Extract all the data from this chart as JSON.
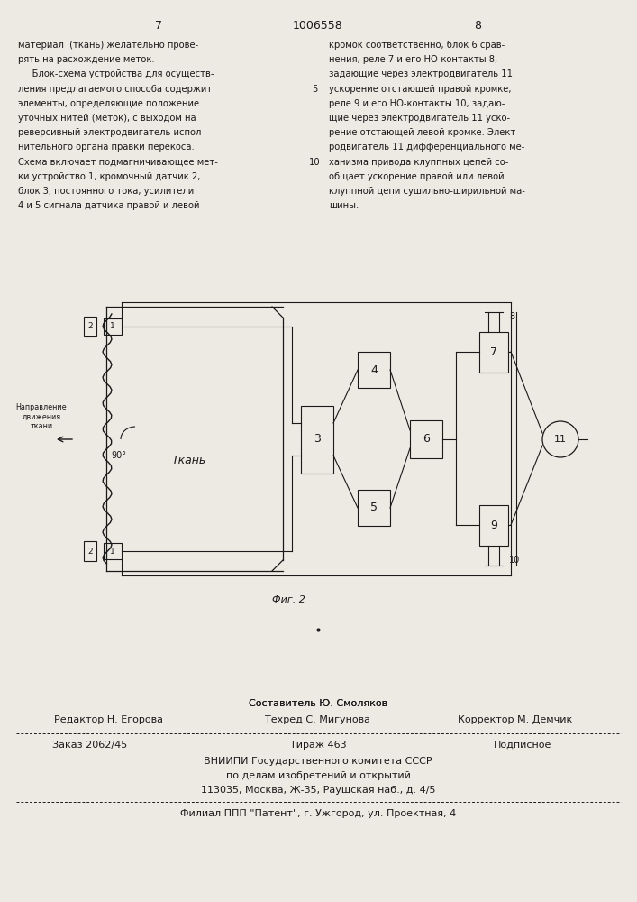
{
  "bg_color": "#ede9e3",
  "text_color": "#1a1a1a",
  "page_left_num": "7",
  "page_center_num": "1006558",
  "page_right_num": "8",
  "left_col_text": [
    "материал  (ткань) желательно прове-",
    "рять на расхождение меток.",
    "     Блок-схема устройства для осуществ-",
    "ления предлагаемого способа содержит",
    "элементы, определяющие положение",
    "уточных нитей (меток), с выходом на",
    "реверсивный электродвигатель испол-",
    "нительного органа правки перекоса.",
    "Схема включает подмагничивающее мет-",
    "ки устройство 1, кромочный датчик 2,",
    "блок 3, постоянного тока, усилители",
    "4 и 5 сигнала датчика правой и левой"
  ],
  "right_col_text": [
    "кромок соответственно, блок 6 срав-",
    "нения, реле 7 и его НО-контакты 8,",
    "задающие через электродвигатель 11",
    "ускорение отстающей правой кромке,",
    "реле 9 и его НО-контакты 10, задаю-",
    "щие через электродвигатель 11 уско-",
    "рение отстающей левой кромке. Элект-",
    "родвигатель 11 дифференциального ме-",
    "ханизма привода клуппных цепей со-",
    "общает ускорение правой или левой",
    "клуппной цепи сушильно-ширильной ма-",
    "шины."
  ],
  "fig_label": "Фиг. 2",
  "fabric_label": "Ткань",
  "direction_label": "Направление\nдвижения\nткани",
  "angle_label": "90°",
  "footer_line1": "Составитель Ю. Смоляков",
  "footer_line2_left": "Редактор Н. Егорова",
  "footer_line2_center": "Техред С. Мигунова",
  "footer_line2_right": "Корректор М. Демчик",
  "footer_line3_left": "Заказ 2062/45",
  "footer_line3_center": "Тираж 463",
  "footer_line3_right": "Подписное",
  "footer_line4": "ВНИИПИ Государственного комитета СССР",
  "footer_line5": "по делам изобретений и открытий",
  "footer_line6": "113035, Москва, Ж-35, Раушская наб., д. 4/5",
  "footer_line7": "Филиал ППП \"Патент\", г. Ужгород, ул. Проектная, 4"
}
